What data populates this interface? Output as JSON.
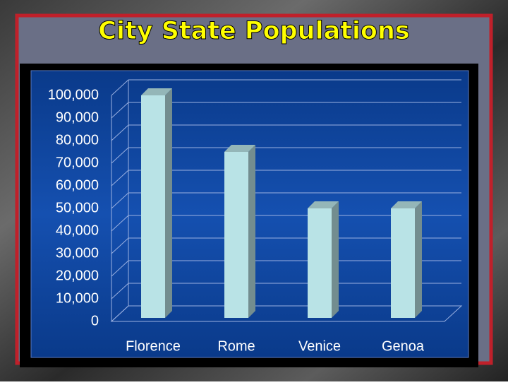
{
  "chart_data": {
    "type": "bar",
    "title": "City State Populations",
    "categories": [
      "Florence",
      "Rome",
      "Venice",
      "Genoa"
    ],
    "values": [
      100000,
      75000,
      50000,
      50000
    ],
    "color": "#b9e3e6",
    "ylim": [
      0,
      100000
    ],
    "yticks": [
      0,
      {
        "value": 10000,
        "label": "10,000"
      },
      {
        "value": 20000,
        "label": "20,000"
      },
      {
        "value": 30000,
        "label": "30,000"
      },
      {
        "value": 40000,
        "label": "40,000"
      },
      {
        "value": 50000,
        "label": "50,000"
      },
      {
        "value": 60000,
        "label": "60,000"
      },
      {
        "value": 70000,
        "label": "70,000"
      },
      {
        "value": 80000,
        "label": "80,000"
      },
      {
        "value": 90000,
        "label": "90,000"
      },
      {
        "value": 100000,
        "label": "100,000"
      }
    ],
    "grid": true
  }
}
